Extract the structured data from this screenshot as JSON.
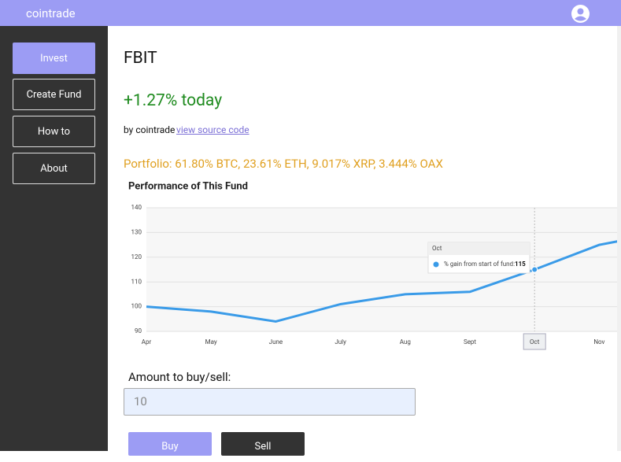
{
  "nav": {
    "brand": "cointrade"
  },
  "sidebar": {
    "buttons": [
      "Invest",
      "Create Fund",
      "How to",
      "About"
    ]
  },
  "fund": {
    "name": "FBIT",
    "change": "+1.27% today",
    "author": "by cointrade",
    "source_link": "view source code",
    "portfolio": "Portfolio: 61.80% BTC, 23.61% ETH, 9.017% XRP, 3.444% OAX"
  },
  "chart_data": {
    "type": "line",
    "title": "Performance of This Fund",
    "categories": [
      "Apr",
      "May",
      "June",
      "July",
      "Aug",
      "Sept",
      "Oct",
      "Nov",
      null
    ],
    "series": [
      {
        "name": "% gain from start of fund:",
        "color": "#3a9be8",
        "values": [
          100,
          98,
          94,
          101,
          105,
          106,
          115,
          125,
          130
        ]
      }
    ],
    "ylim": [
      90,
      140
    ],
    "yticks": [
      90,
      100,
      110,
      120,
      130,
      140
    ],
    "grid": true
  },
  "trade": {
    "label": "Amount to buy/sell:",
    "input_value": "10",
    "buttons": [
      "Buy",
      "Sell"
    ]
  }
}
